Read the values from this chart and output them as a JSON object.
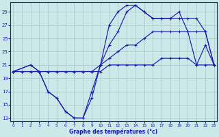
{
  "title": "Graphe des températures (°c)",
  "bg_color": "#cce8e8",
  "grid_color": "#aacccc",
  "line_color": "#1a1aaa",
  "xlim": [
    -0.3,
    23.3
  ],
  "ylim": [
    12.5,
    30.5
  ],
  "xticks": [
    0,
    1,
    2,
    3,
    4,
    5,
    6,
    7,
    8,
    9,
    10,
    11,
    12,
    13,
    14,
    15,
    16,
    17,
    18,
    19,
    20,
    21,
    22,
    23
  ],
  "yticks": [
    13,
    15,
    17,
    19,
    21,
    23,
    25,
    27,
    29
  ],
  "line1_x": [
    0,
    2,
    3,
    4,
    5,
    6,
    7,
    8,
    9,
    10,
    11,
    12,
    13,
    14,
    15,
    16,
    17,
    18,
    19,
    20,
    21,
    22,
    23
  ],
  "line1_y": [
    20,
    21,
    20,
    17,
    16,
    14,
    13,
    13,
    16,
    21,
    24,
    26,
    29,
    30,
    29,
    28,
    28,
    28,
    29,
    26,
    21,
    24,
    21
  ],
  "line2_x": [
    0,
    2,
    3,
    4,
    5,
    6,
    7,
    8,
    9,
    10,
    11,
    12,
    13,
    14,
    15,
    16,
    17,
    18,
    19,
    20,
    21,
    22,
    23
  ],
  "line2_y": [
    20,
    21,
    20,
    17,
    16,
    14,
    13,
    13,
    17,
    21,
    27,
    29,
    30,
    30,
    29,
    28,
    28,
    28,
    28,
    28,
    28,
    26,
    21
  ],
  "line3_x": [
    0,
    1,
    2,
    3,
    4,
    5,
    6,
    7,
    8,
    9,
    10,
    11,
    12,
    13,
    14,
    15,
    16,
    17,
    18,
    19,
    20,
    21,
    22,
    23
  ],
  "line3_y": [
    20,
    20,
    20,
    20,
    20,
    20,
    20,
    20,
    20,
    20,
    21,
    22,
    23,
    24,
    24,
    25,
    26,
    26,
    26,
    26,
    26,
    26,
    26,
    21
  ],
  "line4_x": [
    0,
    1,
    2,
    3,
    4,
    5,
    6,
    7,
    8,
    9,
    10,
    11,
    12,
    13,
    14,
    15,
    16,
    17,
    18,
    19,
    20,
    21,
    22,
    23
  ],
  "line4_y": [
    20,
    20,
    20,
    20,
    20,
    20,
    20,
    20,
    20,
    20,
    20,
    21,
    21,
    21,
    21,
    21,
    21,
    22,
    22,
    22,
    22,
    21,
    21,
    21
  ]
}
